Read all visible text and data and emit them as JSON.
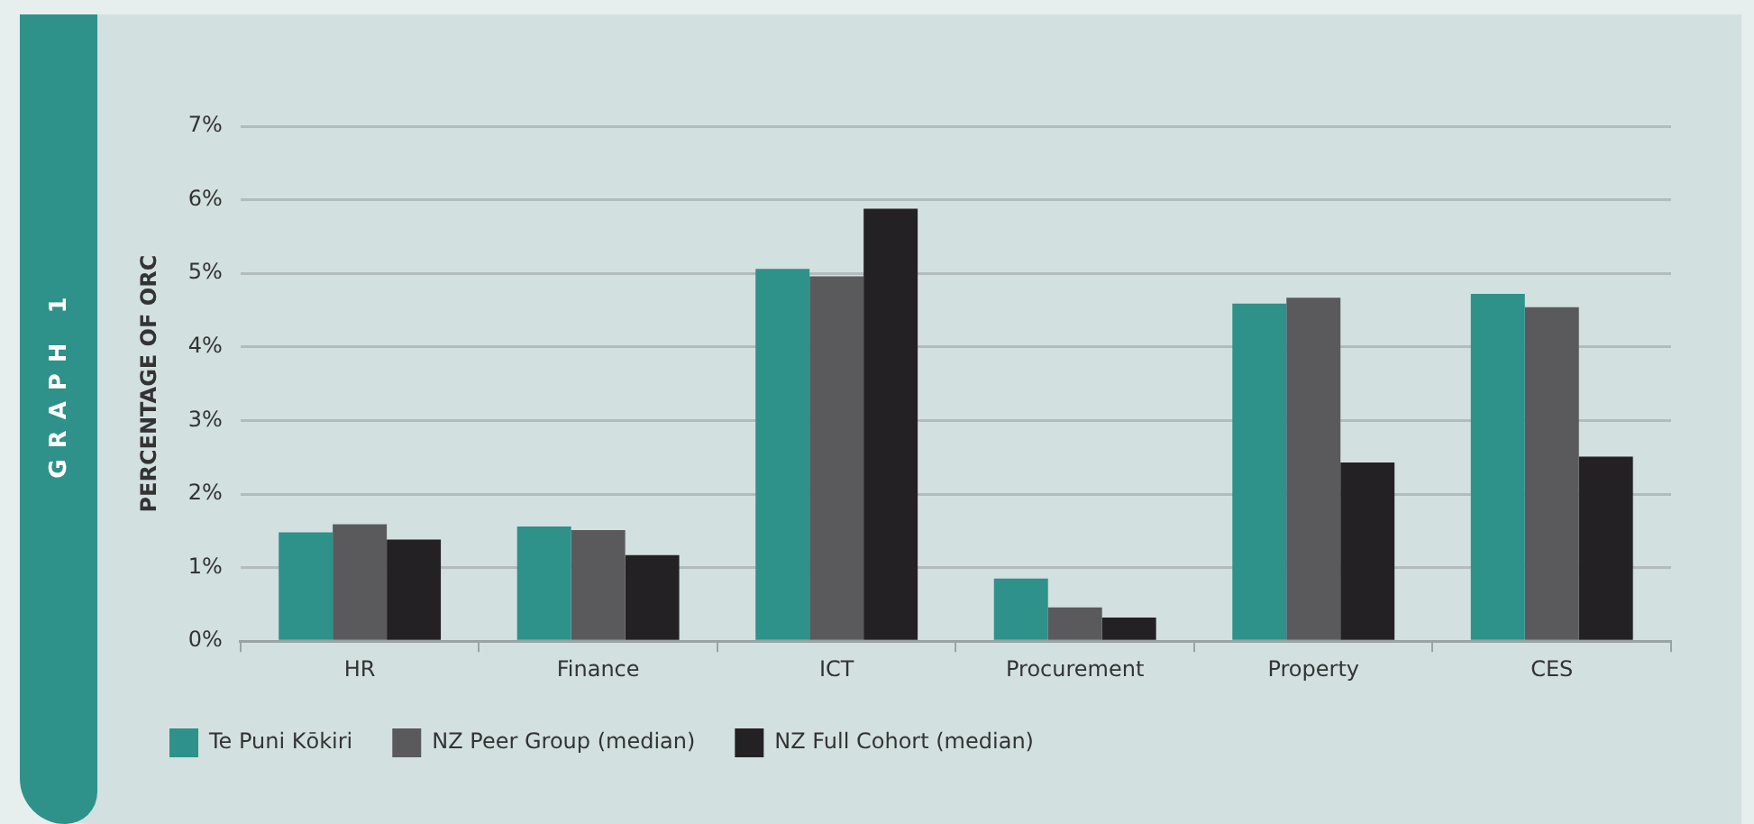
{
  "chart_data": {
    "type": "bar",
    "title": "GRAPH 1",
    "ylabel": "PERCENTAGE OF ORC",
    "categories": [
      "HR",
      "Finance",
      "ICT",
      "Procurement",
      "Property",
      "CES"
    ],
    "series": [
      {
        "name": "Te Puni Kōkiri",
        "color": "#2e918a",
        "values": [
          1.48,
          1.56,
          5.06,
          0.85,
          4.59,
          4.72
        ]
      },
      {
        "name": "NZ Peer Group (median)",
        "color": "#5a5a5c",
        "values": [
          1.59,
          1.51,
          4.96,
          0.46,
          4.67,
          4.54
        ]
      },
      {
        "name": "NZ Full Cohort (median)",
        "color": "#232123",
        "values": [
          1.38,
          1.17,
          5.88,
          0.32,
          2.43,
          2.51
        ]
      }
    ],
    "ylim": [
      0,
      7
    ],
    "yticks": [
      {
        "value": 0,
        "label": "0%"
      },
      {
        "value": 1,
        "label": "1%"
      },
      {
        "value": 2,
        "label": "2%"
      },
      {
        "value": 3,
        "label": "3%"
      },
      {
        "value": 4,
        "label": "4%"
      },
      {
        "value": 5,
        "label": "5%"
      },
      {
        "value": 6,
        "label": "6%"
      },
      {
        "value": 7,
        "label": "7%"
      }
    ],
    "grid": "y",
    "legend": "bottom left"
  }
}
